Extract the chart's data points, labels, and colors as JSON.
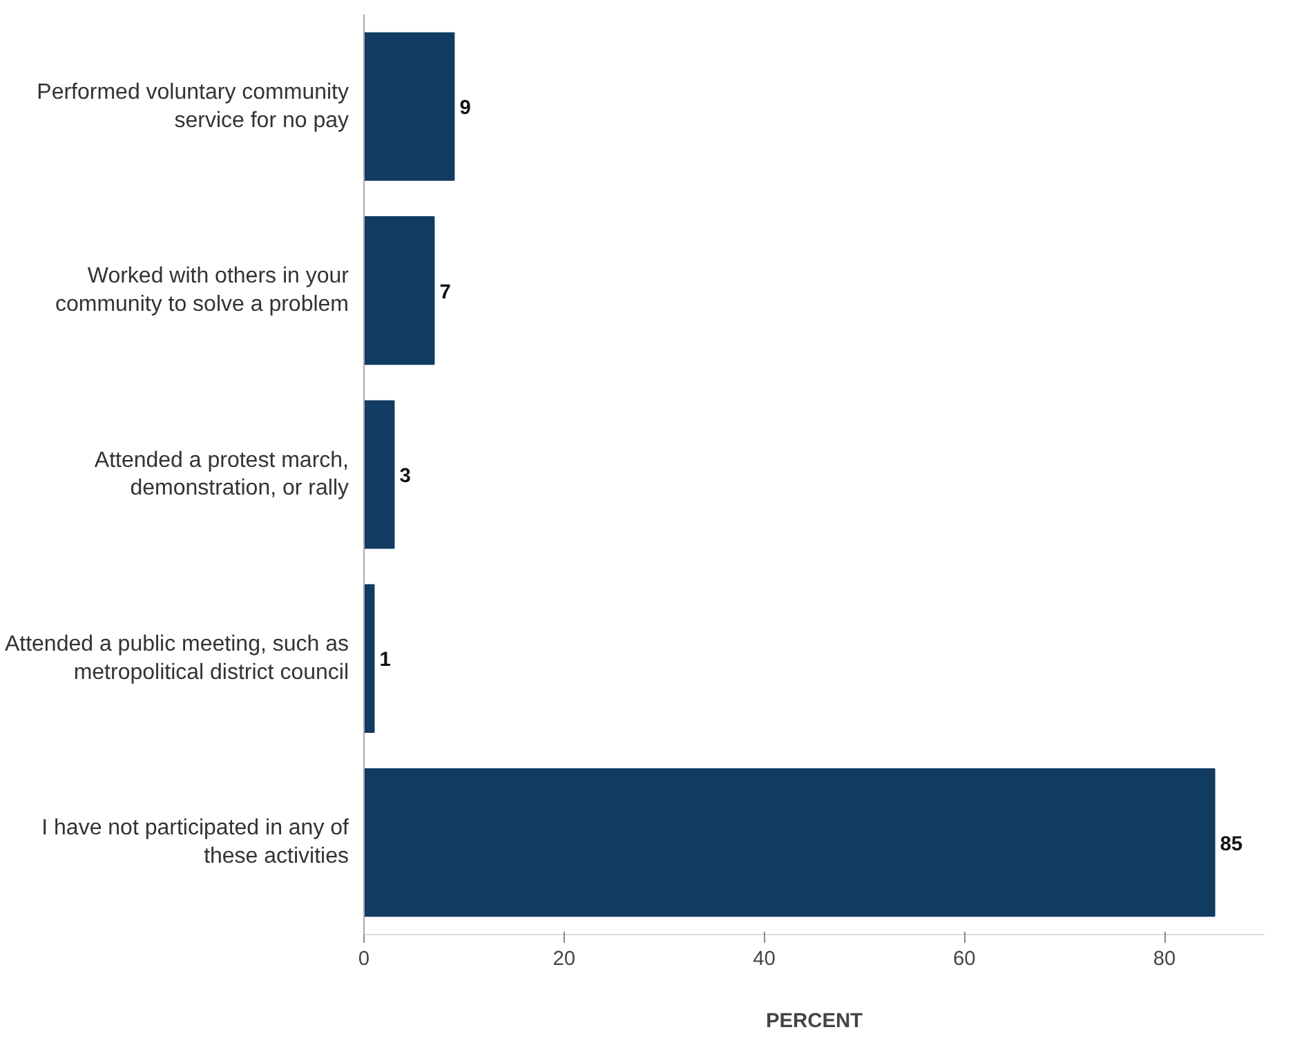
{
  "chart_data": {
    "type": "bar",
    "orientation": "horizontal",
    "xlabel": "PERCENT",
    "categories": [
      "Performed voluntary community service for no pay",
      "Worked with others in your community to solve a problem",
      "Attended a protest march, demonstration, or rally",
      "Attended a public meeting, such as metropolitical district council",
      "I have not participated in any of these activities"
    ],
    "values": [
      9,
      7,
      3,
      1,
      85
    ],
    "color": "#123b61",
    "xlim": [
      0,
      90
    ],
    "xticks": [
      0,
      20,
      40,
      60,
      80
    ],
    "data_labels": true
  }
}
